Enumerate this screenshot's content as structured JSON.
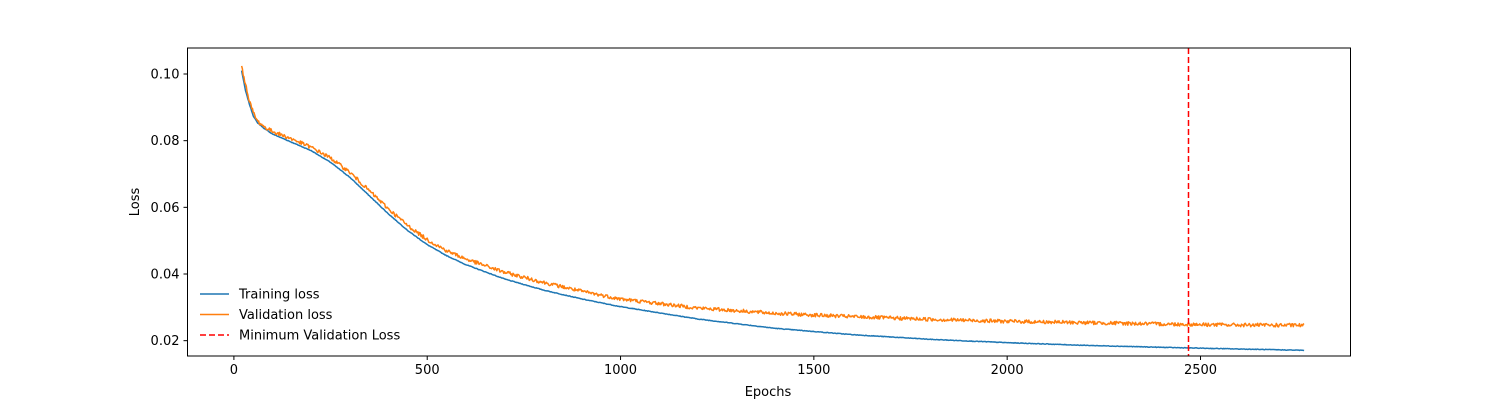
{
  "chart_data": {
    "type": "line",
    "title": "",
    "xlabel": "Epochs",
    "ylabel": "Loss",
    "xlim": [
      -120,
      2888
    ],
    "ylim": [
      0.0154,
      0.1078
    ],
    "xticks": [
      0,
      500,
      1000,
      1500,
      2000,
      2500
    ],
    "xtick_labels": [
      "0",
      "500",
      "1000",
      "1500",
      "2000",
      "2500"
    ],
    "yticks": [
      0.02,
      0.04,
      0.06,
      0.08,
      0.1
    ],
    "ytick_labels": [
      "0.02",
      "0.04",
      "0.06",
      "0.08",
      "0.10"
    ],
    "grid": false,
    "legend_position": "lower-left",
    "series": [
      {
        "name": "Training loss",
        "color": "#1f77b4",
        "style": "solid",
        "x": [
          20,
          30,
          40,
          50,
          60,
          80,
          100,
          150,
          200,
          250,
          300,
          350,
          400,
          450,
          500,
          550,
          600,
          700,
          800,
          900,
          1000,
          1200,
          1400,
          1600,
          1800,
          2000,
          2200,
          2400,
          2600,
          2768
        ],
        "y": [
          0.101,
          0.095,
          0.091,
          0.0875,
          0.0855,
          0.0835,
          0.082,
          0.0795,
          0.077,
          0.0735,
          0.069,
          0.0635,
          0.058,
          0.053,
          0.0488,
          0.0455,
          0.0428,
          0.0385,
          0.0352,
          0.0325,
          0.0302,
          0.0265,
          0.0237,
          0.0218,
          0.0204,
          0.0194,
          0.0186,
          0.018,
          0.0175,
          0.0171
        ]
      },
      {
        "name": "Validation loss",
        "color": "#ff7f0e",
        "style": "solid",
        "x": [
          20,
          30,
          40,
          50,
          60,
          80,
          100,
          150,
          200,
          250,
          300,
          350,
          400,
          450,
          500,
          550,
          600,
          700,
          800,
          900,
          1000,
          1200,
          1400,
          1600,
          1800,
          2000,
          2200,
          2400,
          2600,
          2768
        ],
        "y": [
          0.102,
          0.097,
          0.092,
          0.0885,
          0.086,
          0.084,
          0.0828,
          0.0805,
          0.078,
          0.0748,
          0.0705,
          0.065,
          0.0595,
          0.0545,
          0.0503,
          0.047,
          0.0445,
          0.0405,
          0.0375,
          0.0348,
          0.0325,
          0.0298,
          0.0282,
          0.0272,
          0.0264,
          0.0258,
          0.0254,
          0.025,
          0.0247,
          0.0246
        ]
      }
    ],
    "vlines": [
      {
        "name": "Minimum Validation Loss",
        "x": 2469,
        "color": "#ff0000",
        "style": "dashed"
      }
    ]
  }
}
